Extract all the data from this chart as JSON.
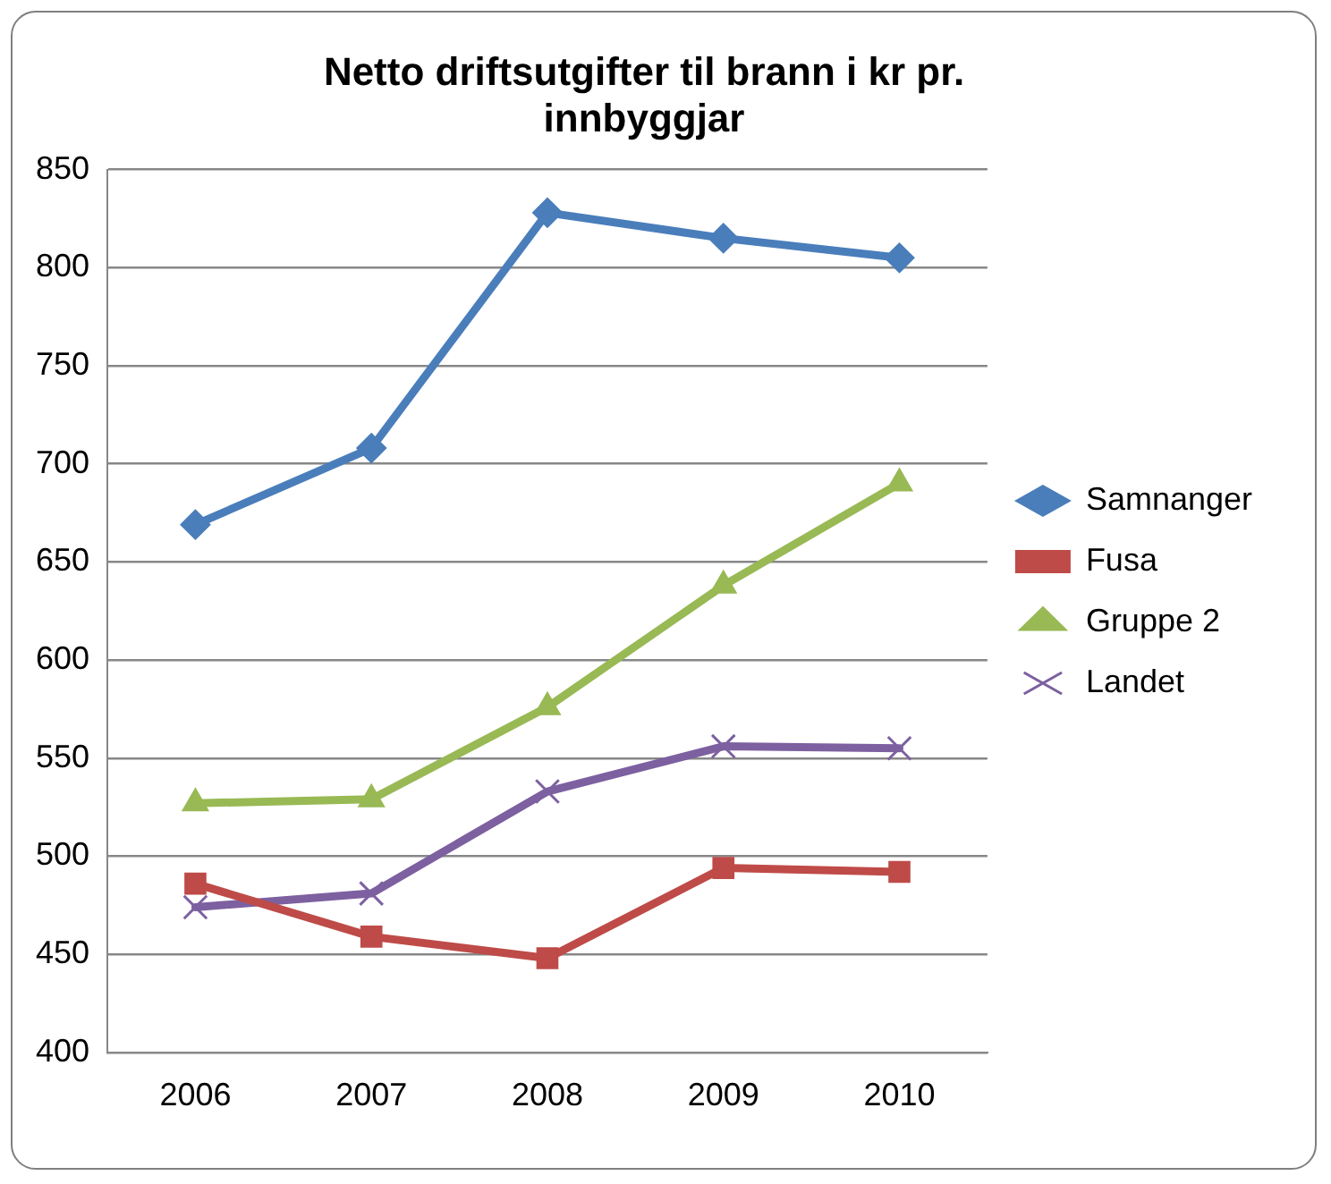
{
  "chart_data": {
    "type": "line",
    "title": "Netto driftsutgifter til brann i kr pr. innbyggjar",
    "categories": [
      "2006",
      "2007",
      "2008",
      "2009",
      "2010"
    ],
    "series": [
      {
        "name": "Samnanger",
        "color": "#4a7ebb",
        "marker": "diamond",
        "values": [
          669,
          708,
          828,
          815,
          805
        ]
      },
      {
        "name": "Fusa",
        "color": "#be4b48",
        "marker": "square",
        "values": [
          486,
          459,
          448,
          494,
          492
        ]
      },
      {
        "name": "Gruppe 2",
        "color": "#98b954",
        "marker": "triangle",
        "values": [
          527,
          529,
          576,
          638,
          690
        ]
      },
      {
        "name": "Landet",
        "color": "#7d60a0",
        "marker": "cross",
        "values": [
          474,
          481,
          533,
          556,
          555
        ]
      }
    ],
    "ylim": [
      400,
      850
    ],
    "yticks": [
      400,
      450,
      500,
      550,
      600,
      650,
      700,
      750,
      800,
      850
    ],
    "grid": "y",
    "legend": "right",
    "line_style": "solid"
  }
}
